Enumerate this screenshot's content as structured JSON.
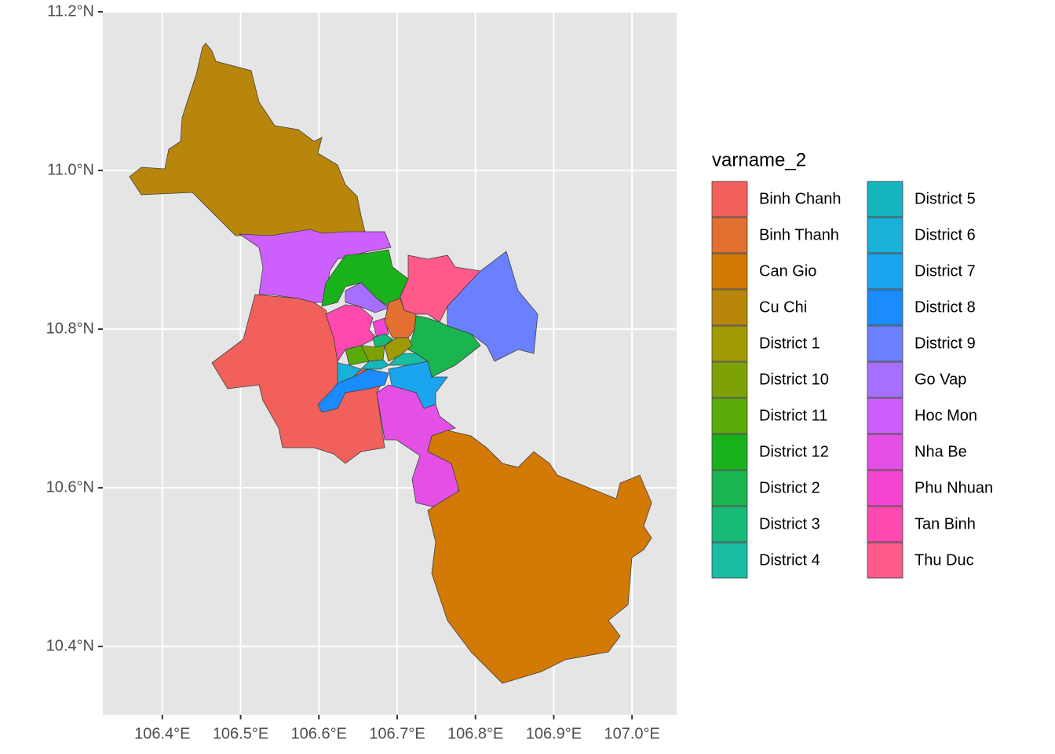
{
  "chart_data": {
    "type": "map",
    "xlim": [
      106.324,
      107.057
    ],
    "ylim": [
      10.314,
      11.2
    ],
    "xticks": [
      {
        "value": 106.4,
        "label": "106.4°E"
      },
      {
        "value": 106.5,
        "label": "106.5°E"
      },
      {
        "value": 106.6,
        "label": "106.6°E"
      },
      {
        "value": 106.7,
        "label": "106.7°E"
      },
      {
        "value": 106.8,
        "label": "106.8°E"
      },
      {
        "value": 106.9,
        "label": "106.9°E"
      },
      {
        "value": 107.0,
        "label": "107.0°E"
      }
    ],
    "yticks": [
      {
        "value": 10.4,
        "label": "10.4°N"
      },
      {
        "value": 10.6,
        "label": "10.6°N"
      },
      {
        "value": 10.8,
        "label": "10.8°N"
      },
      {
        "value": 11.0,
        "label": "11.0°N"
      },
      {
        "value": 11.2,
        "label": "11.2°N"
      }
    ],
    "grid": true,
    "legend_title": "varname_2",
    "categories": [
      "Binh Chanh",
      "Binh Thanh",
      "Can Gio",
      "Cu Chi",
      "District 1",
      "District 10",
      "District 11",
      "District 12",
      "District 2",
      "District 3",
      "District 4",
      "District 5",
      "District 6",
      "District 7",
      "District 8",
      "District 9",
      "Go Vap",
      "Hoc Mon",
      "Nha Be",
      "Phu Nhuan",
      "Tan Binh",
      "Thu Duc"
    ],
    "colors": [
      "#F1605B",
      "#E36F30",
      "#D27A05",
      "#B8860B",
      "#A09A05",
      "#7EA205",
      "#5AAA0A",
      "#1AB21A",
      "#1AB450",
      "#18BA78",
      "#1ABCA2",
      "#17B6BE",
      "#19B0DA",
      "#19A6EE",
      "#1A8CFF",
      "#6B80FF",
      "#A570FF",
      "#CD5FFF",
      "#E44FE5",
      "#F545D0",
      "#FF49B1",
      "#FF5A89"
    ]
  }
}
